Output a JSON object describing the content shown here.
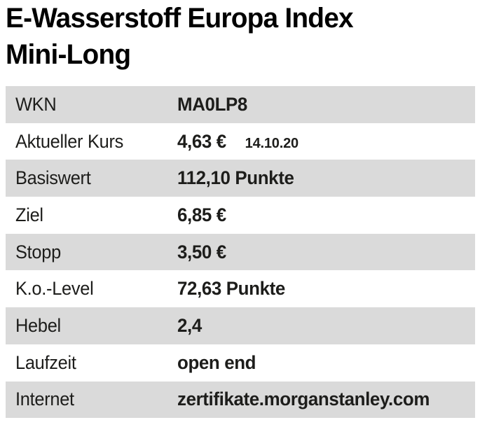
{
  "title": {
    "line1": "E-Wasserstoff Europa Index",
    "line2": "Mini-Long"
  },
  "colors": {
    "shaded_row": "#dadada",
    "text": "#1d1d1b",
    "title_text": "#000000",
    "background": "#ffffff"
  },
  "table": {
    "rows": [
      {
        "label": "WKN",
        "value": "MA0LP8"
      },
      {
        "label": "Aktueller Kurs",
        "value": "4,63 €",
        "date": "14.10.20"
      },
      {
        "label": "Basiswert",
        "value": "112,10 Punkte"
      },
      {
        "label": "Ziel",
        "value": "6,85 €"
      },
      {
        "label": "Stopp",
        "value": "3,50 €"
      },
      {
        "label": "K.o.-Level",
        "value": "72,63 Punkte"
      },
      {
        "label": "Hebel",
        "value": "2,4"
      },
      {
        "label": "Laufzeit",
        "value": "open end"
      },
      {
        "label": "Internet",
        "value": "zertifikate.morganstanley.com"
      }
    ]
  }
}
